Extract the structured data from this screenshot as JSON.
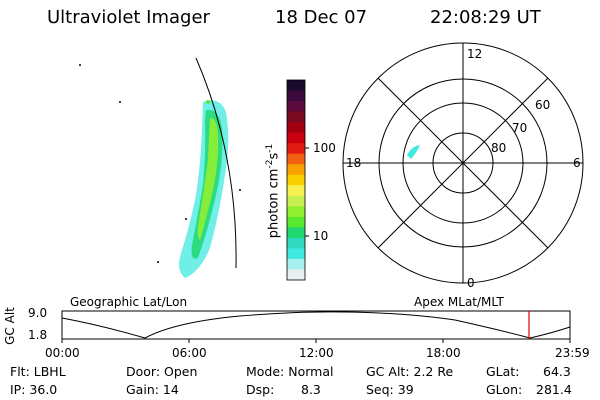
{
  "header": {
    "title": "Ultraviolet Imager",
    "date": "18 Dec 07",
    "time": "22:08:29 UT"
  },
  "colorbar": {
    "unit": "photon cm",
    "unit_sup": "-2",
    "unit_s": "s",
    "unit_sup2": "-1",
    "ticks": [
      "100",
      "10"
    ],
    "colors": [
      "#1a0a2e",
      "#3a0a3c",
      "#5a0a3c",
      "#7a0a20",
      "#a00010",
      "#c80010",
      "#e01a10",
      "#f06010",
      "#f8a000",
      "#f8d000",
      "#f8f050",
      "#c8f050",
      "#90f030",
      "#58e830",
      "#20d870",
      "#30d8c0",
      "#40e8e0",
      "#a8f0f0",
      "#e8f0f0"
    ]
  },
  "polar": {
    "mlt_labels": [
      "12",
      "6",
      "0",
      "18"
    ],
    "lat_labels": [
      "60",
      "70",
      "80"
    ]
  },
  "panel_labels": {
    "left": "Geographic Lat/Lon",
    "right": "Apex MLat/MLT"
  },
  "gc_alt_plot": {
    "ylabel": "GC Alt",
    "ytick_top": "9.0",
    "ytick_bottom": "1.8",
    "xticks": [
      "00:00",
      "06:00",
      "12:00",
      "18:00",
      "23:59"
    ],
    "current_time_marker_color": "#e00000"
  },
  "info": {
    "flt": "Flt: LBHL",
    "ip": "IP: 36.0",
    "door": "Door: Open",
    "gain": "Gain: 14",
    "mode": "Mode: Normal",
    "dsp_label": "Dsp:",
    "dsp_value": "8.3",
    "gcalt": "GC Alt: 2.2 Re",
    "seq": "Seq: 39",
    "glat_label": "GLat:",
    "glat_value": "64.3",
    "glon_label": "GLon:",
    "glon_value": "281.4"
  }
}
